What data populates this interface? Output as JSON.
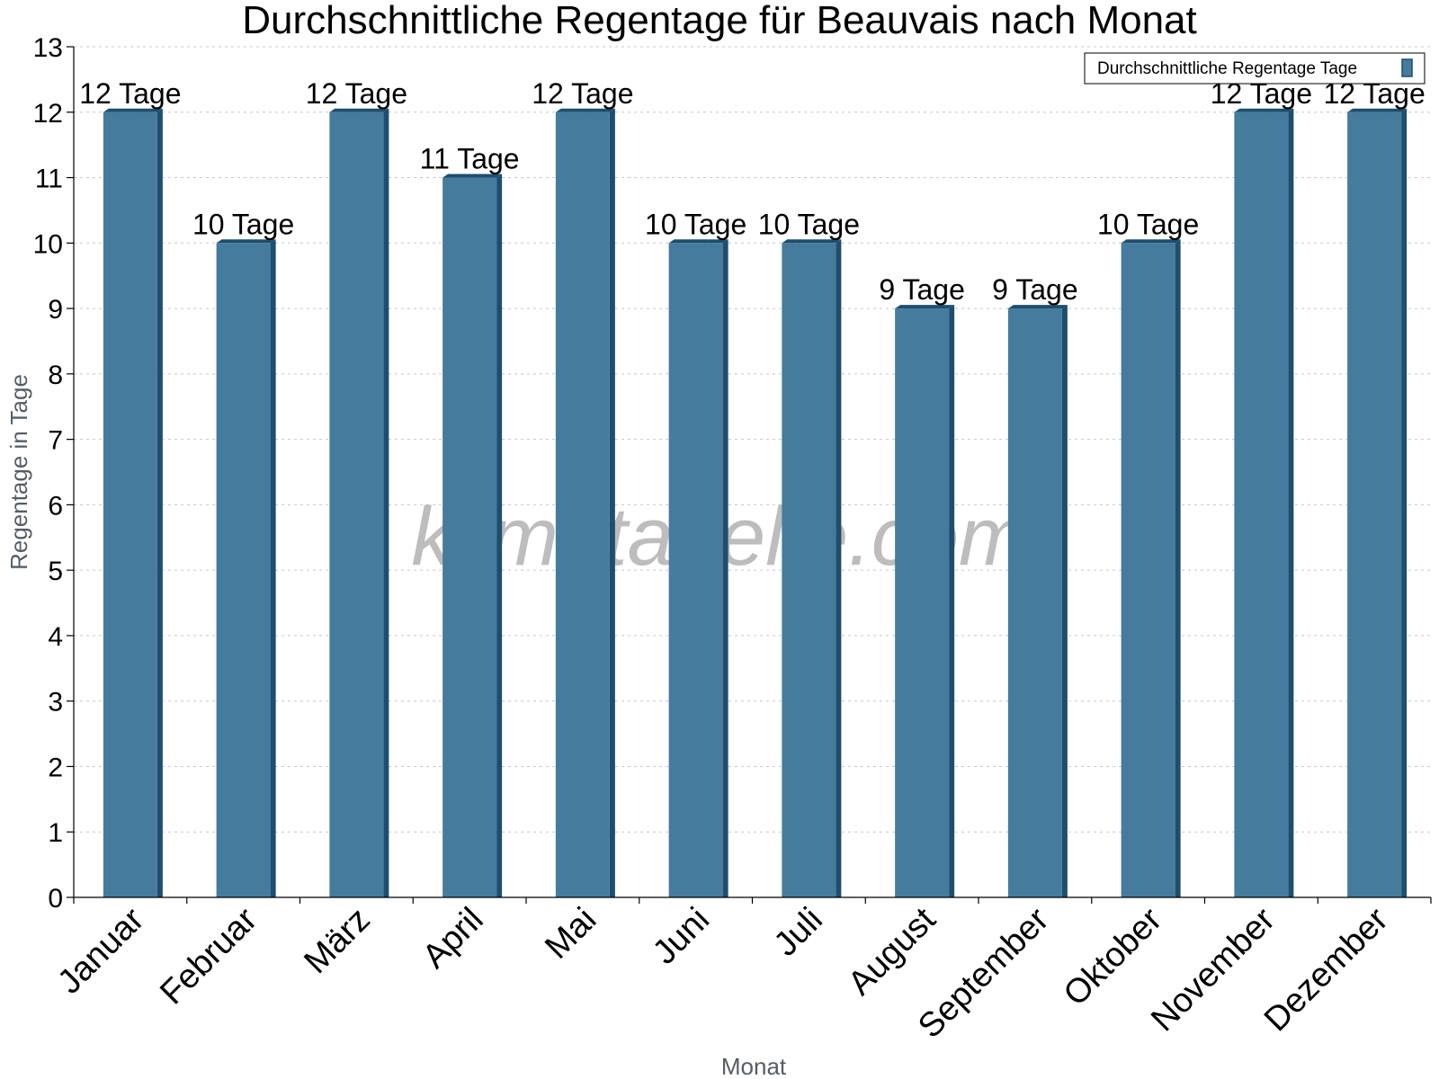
{
  "watermark": "klimatabelle.com",
  "colors": {
    "bar_front": "#457b9d",
    "bar_side": "#1d4e6e",
    "bar_top": "#1d4e6e"
  },
  "chart_data": {
    "type": "bar",
    "title": "Durchschnittliche Regentage für Beauvais nach Monat",
    "xlabel": "Monat",
    "ylabel": "Regentage in Tage",
    "ylim": [
      0,
      13
    ],
    "yticks": [
      0,
      1,
      2,
      3,
      4,
      5,
      6,
      7,
      8,
      9,
      10,
      11,
      12,
      13
    ],
    "grid": true,
    "legend_position": "top-right",
    "categories": [
      "Januar",
      "Februar",
      "März",
      "April",
      "Mai",
      "Juni",
      "Juli",
      "August",
      "September",
      "Oktober",
      "November",
      "Dezember"
    ],
    "series": [
      {
        "name": "Durchschnittliche Regentage Tage",
        "values": [
          12,
          10,
          12,
          11,
          12,
          10,
          10,
          9,
          9,
          10,
          12,
          12
        ],
        "labels": [
          "12 Tage",
          "10 Tage",
          "12 Tage",
          "11 Tage",
          "12 Tage",
          "10 Tage",
          "10 Tage",
          "9 Tage",
          "9 Tage",
          "10 Tage",
          "12 Tage",
          "12 Tage"
        ]
      }
    ]
  }
}
